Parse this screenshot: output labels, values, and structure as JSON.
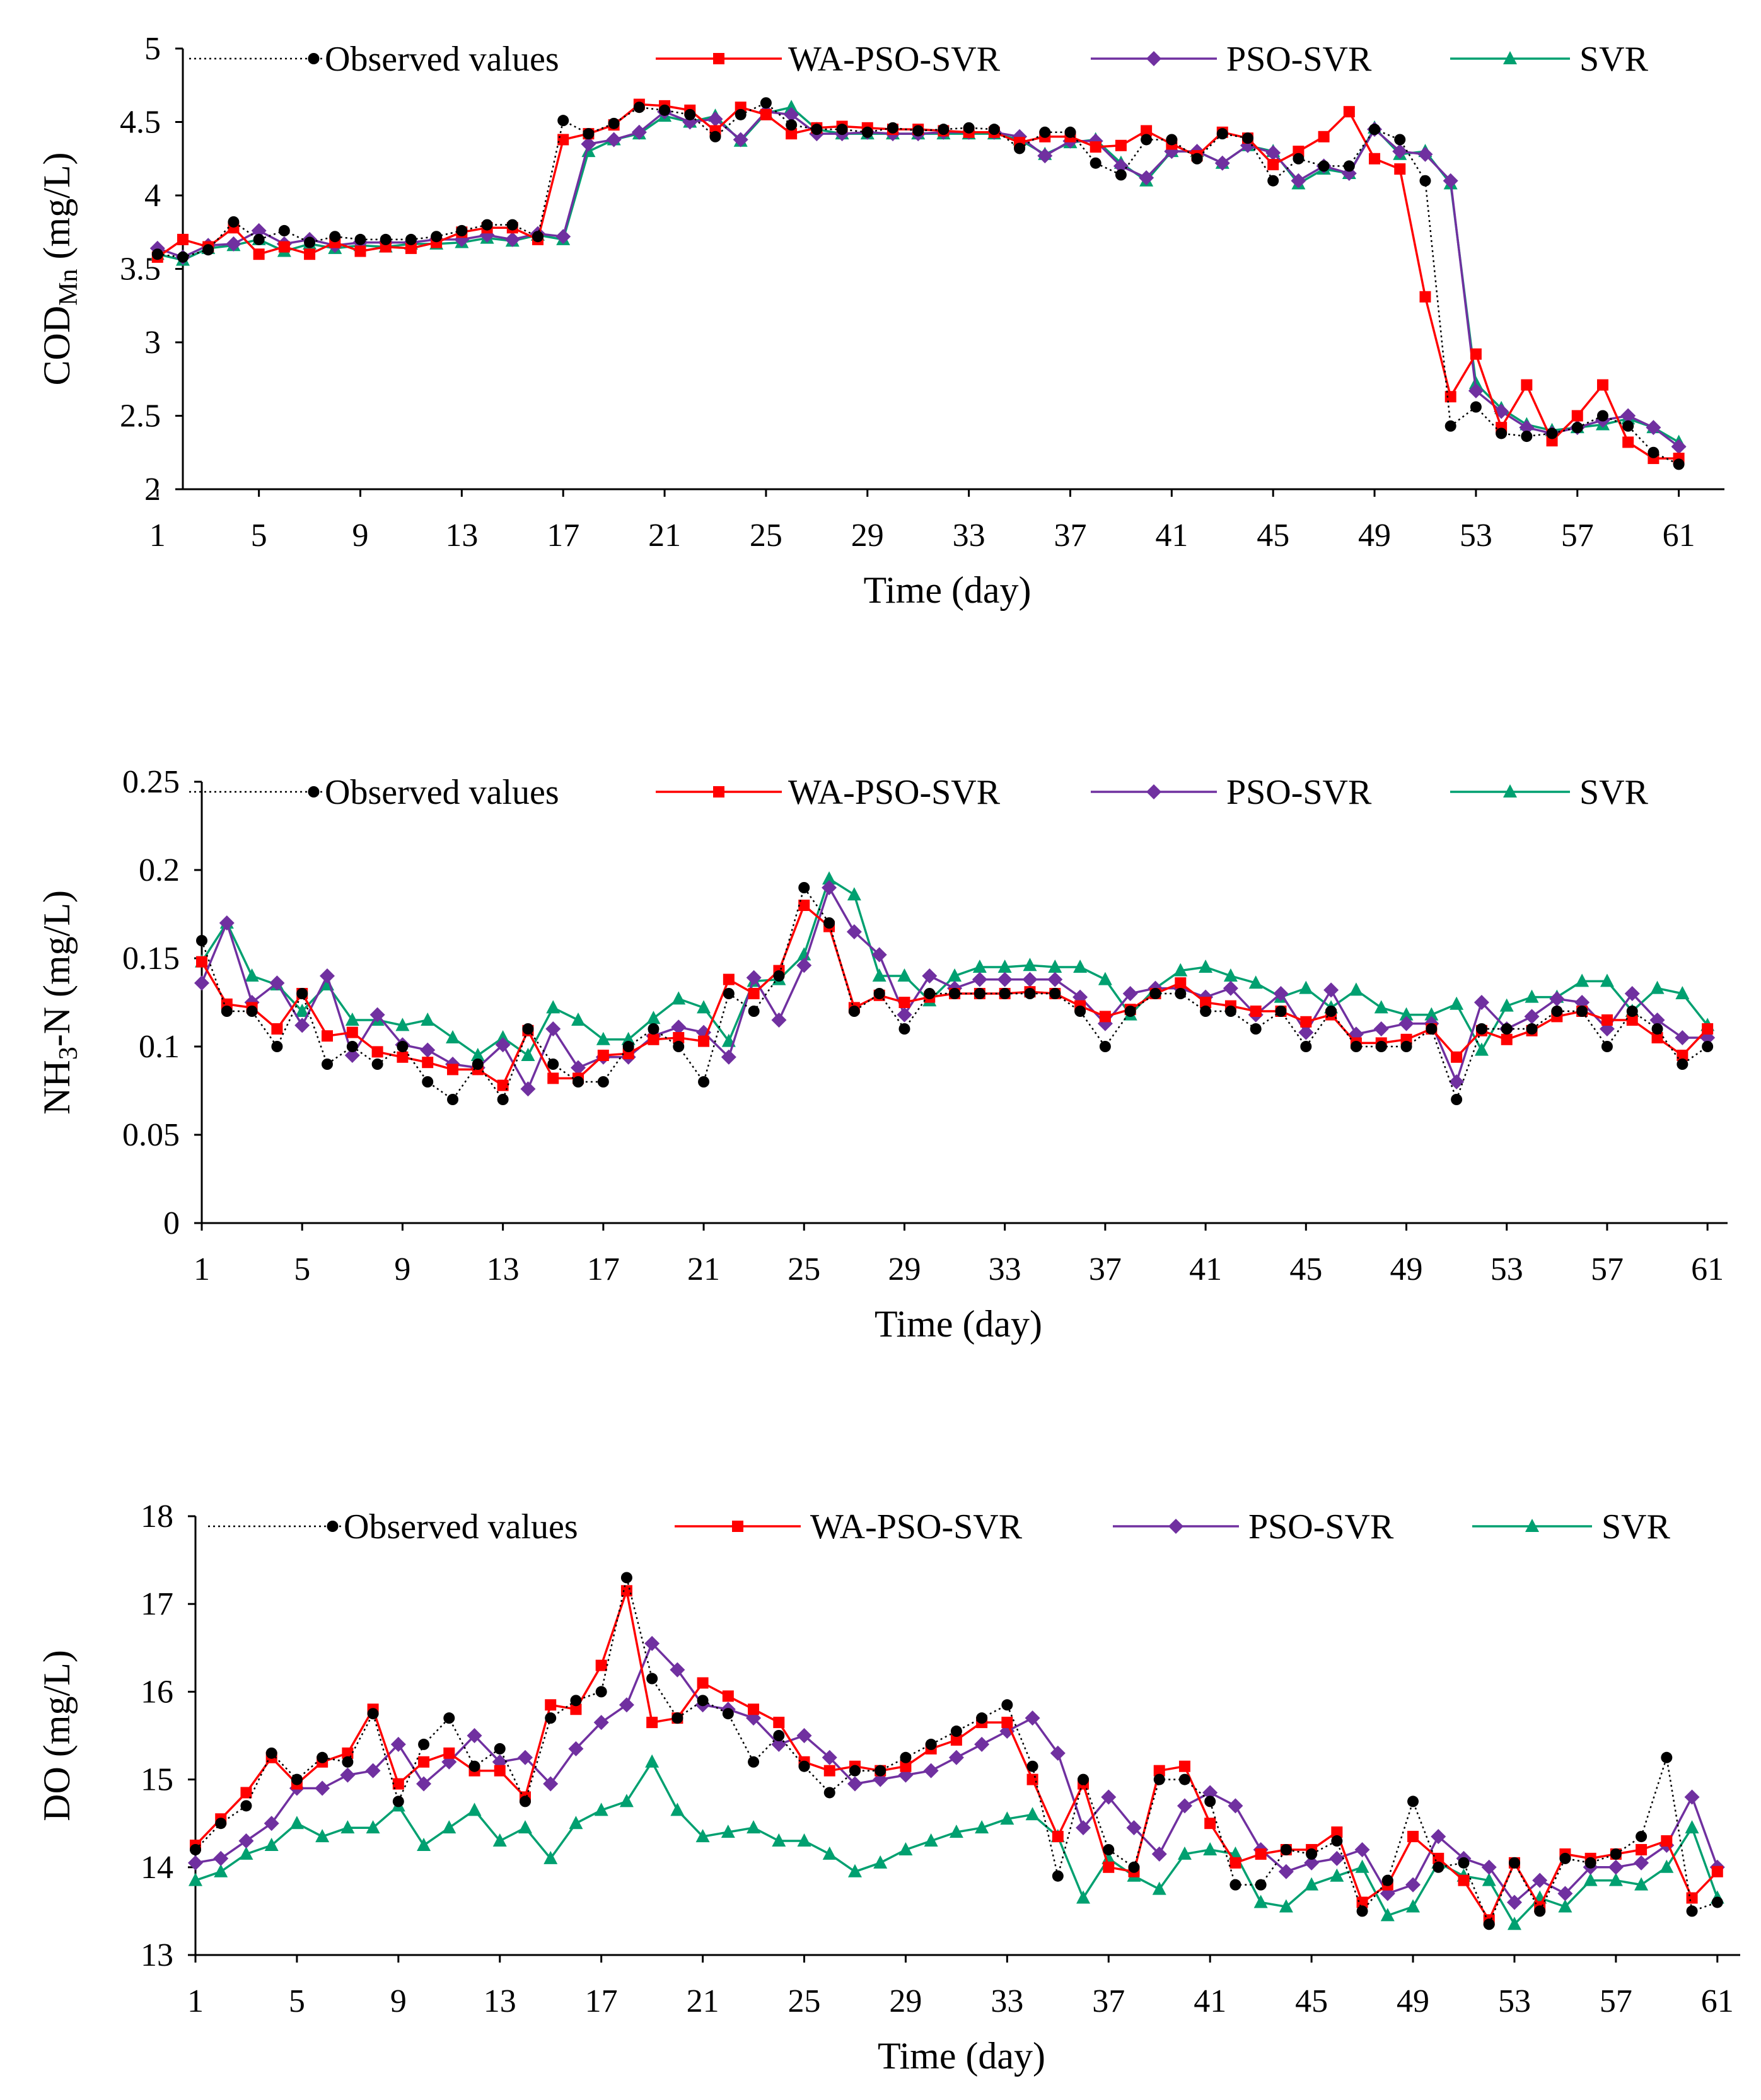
{
  "chart_data": [
    {
      "type": "line",
      "ylabel": "CODMn (mg/L)",
      "ylabel_main": "COD",
      "ylabel_sub": "Mn",
      "ylabel_unit": " (mg/L)",
      "xlabel": "Time (day)",
      "ylim": [
        2,
        5
      ],
      "yticks": [
        "2",
        "2.5",
        "3",
        "3.5",
        "4",
        "4.5",
        "5"
      ],
      "xticks": [
        "1",
        "5",
        "9",
        "13",
        "17",
        "21",
        "25",
        "29",
        "33",
        "37",
        "41",
        "45",
        "49",
        "53",
        "57",
        "61"
      ],
      "x": [
        1,
        2,
        3,
        4,
        5,
        6,
        7,
        8,
        9,
        10,
        11,
        12,
        13,
        14,
        15,
        16,
        17,
        18,
        19,
        20,
        21,
        22,
        23,
        24,
        25,
        26,
        27,
        28,
        29,
        30,
        31,
        32,
        33,
        34,
        35,
        36,
        37,
        38,
        39,
        40,
        41,
        42,
        43,
        44,
        45,
        46,
        47,
        48,
        49,
        50,
        51,
        52,
        53,
        54,
        55,
        56,
        57,
        58,
        59,
        60,
        61
      ],
      "legend": [
        "Observed values",
        "WA-PSO-SVR",
        "PSO-SVR",
        "SVR"
      ],
      "series": [
        {
          "name": "Observed values",
          "color": "#000000",
          "values": [
            3.6,
            3.58,
            3.63,
            3.82,
            3.7,
            3.76,
            3.68,
            3.72,
            3.7,
            3.7,
            3.7,
            3.72,
            3.76,
            3.8,
            3.8,
            3.72,
            4.51,
            4.42,
            4.49,
            4.6,
            4.58,
            4.55,
            4.4,
            4.55,
            4.63,
            4.48,
            4.45,
            4.45,
            4.43,
            4.46,
            4.44,
            4.45,
            4.46,
            4.45,
            4.32,
            4.43,
            4.43,
            4.22,
            4.14,
            4.38,
            4.38,
            4.25,
            4.42,
            4.39,
            4.1,
            4.25,
            4.2,
            4.2,
            4.45,
            4.38,
            4.1,
            2.43,
            2.56,
            2.38,
            2.36,
            2.38,
            2.42,
            2.5,
            2.43,
            2.25,
            2.17
          ]
        },
        {
          "name": "WA-PSO-SVR",
          "color": "#ff0000",
          "values": [
            3.58,
            3.7,
            3.65,
            3.78,
            3.6,
            3.65,
            3.6,
            3.68,
            3.62,
            3.65,
            3.64,
            3.68,
            3.75,
            3.78,
            3.78,
            3.7,
            4.38,
            4.42,
            4.48,
            4.62,
            4.61,
            4.58,
            4.44,
            4.6,
            4.55,
            4.42,
            4.46,
            4.47,
            4.46,
            4.45,
            4.45,
            4.44,
            4.43,
            4.43,
            4.36,
            4.4,
            4.4,
            4.33,
            4.34,
            4.44,
            4.35,
            4.27,
            4.43,
            4.39,
            4.21,
            4.3,
            4.4,
            4.57,
            4.25,
            4.18,
            3.31,
            2.63,
            2.92,
            2.42,
            2.71,
            2.33,
            2.5,
            2.71,
            2.32,
            2.21,
            2.21
          ]
        },
        {
          "name": "PSO-SVR",
          "color": "#7030a0",
          "values": [
            3.64,
            3.58,
            3.66,
            3.67,
            3.76,
            3.67,
            3.7,
            3.66,
            3.68,
            3.68,
            3.68,
            3.7,
            3.7,
            3.73,
            3.7,
            3.74,
            3.72,
            4.35,
            4.38,
            4.43,
            4.57,
            4.5,
            4.52,
            4.38,
            4.57,
            4.55,
            4.42,
            4.42,
            4.43,
            4.42,
            4.42,
            4.43,
            4.43,
            4.43,
            4.4,
            4.27,
            4.37,
            4.37,
            4.2,
            4.12,
            4.3,
            4.3,
            4.22,
            4.34,
            4.29,
            4.1,
            4.2,
            4.15,
            4.45,
            4.3,
            4.28,
            4.1,
            2.67,
            2.53,
            2.42,
            2.38,
            2.42,
            2.47,
            2.5,
            2.42,
            2.29
          ]
        },
        {
          "name": "SVR",
          "color": "#00a070",
          "values": [
            3.6,
            3.56,
            3.64,
            3.66,
            3.7,
            3.62,
            3.67,
            3.64,
            3.66,
            3.65,
            3.67,
            3.67,
            3.68,
            3.71,
            3.69,
            3.73,
            3.7,
            4.3,
            4.38,
            4.42,
            4.54,
            4.5,
            4.54,
            4.37,
            4.56,
            4.6,
            4.45,
            4.42,
            4.42,
            4.42,
            4.42,
            4.42,
            4.42,
            4.42,
            4.38,
            4.28,
            4.36,
            4.38,
            4.22,
            4.1,
            4.3,
            4.3,
            4.22,
            4.34,
            4.3,
            4.08,
            4.18,
            4.15,
            4.46,
            4.28,
            4.3,
            4.08,
            2.72,
            2.55,
            2.44,
            2.4,
            2.42,
            2.44,
            2.48,
            2.42,
            2.32
          ]
        }
      ]
    },
    {
      "type": "line",
      "ylabel": "NH3-N (mg/L)",
      "ylabel_main": "NH",
      "ylabel_sub": "3",
      "ylabel_unit": "-N (mg/L)",
      "xlabel": "Time (day)",
      "ylim": [
        0,
        0.25
      ],
      "yticks": [
        "0",
        "0.05",
        "0.1",
        "0.15",
        "0.2",
        "0.25"
      ],
      "xticks": [
        "1",
        "5",
        "9",
        "13",
        "17",
        "21",
        "25",
        "29",
        "33",
        "37",
        "41",
        "45",
        "49",
        "53",
        "57",
        "61"
      ],
      "x": [
        1,
        2,
        3,
        4,
        5,
        6,
        7,
        8,
        9,
        10,
        11,
        12,
        13,
        14,
        15,
        16,
        17,
        18,
        19,
        20,
        21,
        22,
        23,
        24,
        25,
        26,
        27,
        28,
        29,
        30,
        31,
        32,
        33,
        34,
        35,
        36,
        37,
        38,
        39,
        40,
        41,
        42,
        43,
        44,
        45,
        46,
        47,
        48,
        49,
        50,
        51,
        52,
        53,
        54,
        55,
        56,
        57,
        58,
        59,
        60,
        61
      ],
      "legend": [
        "Observed values",
        "WA-PSO-SVR",
        "PSO-SVR",
        "SVR"
      ],
      "series": [
        {
          "name": "Observed values",
          "color": "#000000",
          "values": [
            0.16,
            0.12,
            0.12,
            0.1,
            0.13,
            0.09,
            0.1,
            0.09,
            0.1,
            0.08,
            0.07,
            0.09,
            0.07,
            0.11,
            0.09,
            0.08,
            0.08,
            0.1,
            0.11,
            0.1,
            0.08,
            0.13,
            0.12,
            0.14,
            0.19,
            0.17,
            0.12,
            0.13,
            0.11,
            0.13,
            0.13,
            0.13,
            0.13,
            0.13,
            0.13,
            0.12,
            0.1,
            0.12,
            0.13,
            0.13,
            0.12,
            0.12,
            0.11,
            0.12,
            0.1,
            0.12,
            0.1,
            0.1,
            0.1,
            0.11,
            0.07,
            0.11,
            0.11,
            0.11,
            0.12,
            0.12,
            0.1,
            0.12,
            0.11,
            0.09,
            0.1
          ]
        },
        {
          "name": "WA-PSO-SVR",
          "color": "#ff0000",
          "values": [
            0.148,
            0.124,
            0.122,
            0.11,
            0.13,
            0.106,
            0.108,
            0.097,
            0.094,
            0.091,
            0.087,
            0.087,
            0.078,
            0.109,
            0.082,
            0.082,
            0.095,
            0.096,
            0.104,
            0.105,
            0.103,
            0.138,
            0.13,
            0.143,
            0.18,
            0.168,
            0.122,
            0.129,
            0.125,
            0.128,
            0.13,
            0.13,
            0.13,
            0.131,
            0.13,
            0.123,
            0.117,
            0.121,
            0.13,
            0.136,
            0.125,
            0.123,
            0.12,
            0.12,
            0.114,
            0.118,
            0.102,
            0.102,
            0.104,
            0.11,
            0.094,
            0.109,
            0.104,
            0.109,
            0.117,
            0.12,
            0.115,
            0.115,
            0.105,
            0.095,
            0.11
          ]
        },
        {
          "name": "PSO-SVR",
          "color": "#7030a0",
          "values": [
            0.136,
            0.17,
            0.125,
            0.136,
            0.112,
            0.14,
            0.095,
            0.118,
            0.101,
            0.098,
            0.09,
            0.088,
            0.101,
            0.076,
            0.11,
            0.088,
            0.094,
            0.094,
            0.106,
            0.111,
            0.108,
            0.094,
            0.139,
            0.115,
            0.146,
            0.19,
            0.165,
            0.152,
            0.118,
            0.14,
            0.133,
            0.138,
            0.138,
            0.138,
            0.138,
            0.128,
            0.113,
            0.13,
            0.133,
            0.133,
            0.128,
            0.133,
            0.118,
            0.13,
            0.108,
            0.132,
            0.107,
            0.11,
            0.113,
            0.113,
            0.08,
            0.125,
            0.11,
            0.117,
            0.127,
            0.125,
            0.11,
            0.13,
            0.115,
            0.105,
            0.105
          ]
        },
        {
          "name": "SVR",
          "color": "#00a070",
          "values": [
            0.148,
            0.17,
            0.14,
            0.135,
            0.12,
            0.135,
            0.115,
            0.115,
            0.112,
            0.115,
            0.105,
            0.095,
            0.105,
            0.095,
            0.122,
            0.115,
            0.104,
            0.104,
            0.116,
            0.127,
            0.122,
            0.103,
            0.137,
            0.138,
            0.152,
            0.195,
            0.186,
            0.14,
            0.14,
            0.126,
            0.14,
            0.145,
            0.145,
            0.146,
            0.145,
            0.145,
            0.138,
            0.118,
            0.133,
            0.143,
            0.145,
            0.14,
            0.136,
            0.128,
            0.133,
            0.122,
            0.132,
            0.122,
            0.118,
            0.118,
            0.124,
            0.098,
            0.123,
            0.128,
            0.128,
            0.137,
            0.137,
            0.12,
            0.133,
            0.13,
            0.112
          ]
        }
      ]
    },
    {
      "type": "line",
      "ylabel": "DO (mg/L)",
      "ylabel_main": "DO",
      "ylabel_sub": "",
      "ylabel_unit": " (mg/L)",
      "xlabel": "Time (day)",
      "ylim": [
        13,
        18
      ],
      "yticks": [
        "13",
        "14",
        "15",
        "16",
        "17",
        "18"
      ],
      "xticks": [
        "1",
        "5",
        "9",
        "13",
        "17",
        "21",
        "25",
        "29",
        "33",
        "37",
        "41",
        "45",
        "49",
        "53",
        "57",
        "61"
      ],
      "x": [
        1,
        2,
        3,
        4,
        5,
        6,
        7,
        8,
        9,
        10,
        11,
        12,
        13,
        14,
        15,
        16,
        17,
        18,
        19,
        20,
        21,
        22,
        23,
        24,
        25,
        26,
        27,
        28,
        29,
        30,
        31,
        32,
        33,
        34,
        35,
        36,
        37,
        38,
        39,
        40,
        41,
        42,
        43,
        44,
        45,
        46,
        47,
        48,
        49,
        50,
        51,
        52,
        53,
        54,
        55,
        56,
        57,
        58,
        59,
        60,
        61
      ],
      "legend": [
        "Observed values",
        "WA-PSO-SVR",
        "PSO-SVR",
        "SVR"
      ],
      "series": [
        {
          "name": "Observed values",
          "color": "#000000",
          "values": [
            14.2,
            14.5,
            14.7,
            15.3,
            15.0,
            15.25,
            15.2,
            15.75,
            14.75,
            15.4,
            15.7,
            15.15,
            15.35,
            14.75,
            15.7,
            15.9,
            16.0,
            17.3,
            16.15,
            15.7,
            15.9,
            15.75,
            15.2,
            15.5,
            15.15,
            14.85,
            15.1,
            15.1,
            15.25,
            15.4,
            15.55,
            15.7,
            15.85,
            15.15,
            13.9,
            15.0,
            14.2,
            14.0,
            15.0,
            15.0,
            14.75,
            13.8,
            13.8,
            14.2,
            14.15,
            14.3,
            13.5,
            13.85,
            14.75,
            14.0,
            14.05,
            13.35,
            14.05,
            13.5,
            14.1,
            14.05,
            14.15,
            14.35,
            15.25,
            13.5,
            13.6
          ]
        },
        {
          "name": "WA-PSO-SVR",
          "color": "#ff0000",
          "values": [
            14.25,
            14.55,
            14.85,
            15.25,
            14.95,
            15.2,
            15.3,
            15.8,
            14.95,
            15.2,
            15.3,
            15.1,
            15.1,
            14.8,
            15.85,
            15.8,
            16.3,
            17.15,
            15.65,
            15.7,
            16.1,
            15.95,
            15.8,
            15.65,
            15.2,
            15.1,
            15.15,
            15.1,
            15.15,
            15.35,
            15.45,
            15.65,
            15.65,
            15.0,
            14.35,
            14.95,
            14.0,
            13.95,
            15.1,
            15.15,
            14.5,
            14.05,
            14.15,
            14.2,
            14.2,
            14.4,
            13.6,
            13.8,
            14.35,
            14.1,
            13.85,
            13.4,
            14.05,
            13.55,
            14.15,
            14.1,
            14.15,
            14.2,
            14.3,
            13.65,
            13.95
          ]
        },
        {
          "name": "PSO-SVR",
          "color": "#7030a0",
          "values": [
            14.05,
            14.1,
            14.3,
            14.5,
            14.9,
            14.9,
            15.05,
            15.1,
            15.4,
            14.95,
            15.2,
            15.5,
            15.2,
            15.25,
            14.95,
            15.35,
            15.65,
            15.85,
            16.55,
            16.25,
            15.85,
            15.8,
            15.7,
            15.4,
            15.5,
            15.25,
            14.95,
            15.0,
            15.05,
            15.1,
            15.25,
            15.4,
            15.55,
            15.7,
            15.3,
            14.45,
            14.8,
            14.45,
            14.15,
            14.7,
            14.85,
            14.7,
            14.2,
            13.95,
            14.05,
            14.1,
            14.2,
            13.7,
            13.8,
            14.35,
            14.1,
            14.0,
            13.6,
            13.85,
            13.7,
            14.0,
            14.0,
            14.05,
            14.25,
            14.8,
            14.0
          ]
        },
        {
          "name": "SVR",
          "color": "#00a070",
          "values": [
            13.85,
            13.95,
            14.15,
            14.25,
            14.5,
            14.35,
            14.45,
            14.45,
            14.7,
            14.25,
            14.45,
            14.65,
            14.3,
            14.45,
            14.1,
            14.5,
            14.65,
            14.75,
            15.2,
            14.65,
            14.35,
            14.4,
            14.45,
            14.3,
            14.3,
            14.15,
            13.95,
            14.05,
            14.2,
            14.3,
            14.4,
            14.45,
            14.55,
            14.6,
            14.35,
            13.65,
            14.1,
            13.9,
            13.75,
            14.15,
            14.2,
            14.15,
            13.6,
            13.55,
            13.8,
            13.9,
            14.0,
            13.45,
            13.55,
            14.05,
            13.9,
            13.85,
            13.35,
            13.65,
            13.55,
            13.85,
            13.85,
            13.8,
            14.0,
            14.45,
            13.65
          ]
        }
      ]
    }
  ]
}
